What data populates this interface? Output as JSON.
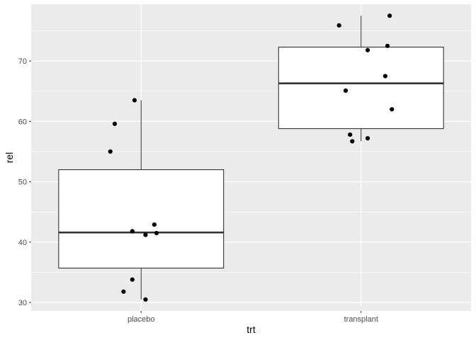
{
  "chart_data": {
    "type": "box",
    "xlabel": "trt",
    "ylabel": "rel",
    "categories": [
      "placebo",
      "transplant"
    ],
    "ylim": [
      28.6,
      79.4
    ],
    "yticks": [
      30,
      40,
      50,
      60,
      70
    ],
    "grid": true,
    "boxes": [
      {
        "category": "placebo",
        "whisker_low": 30.5,
        "q1": 35.7,
        "median": 41.6,
        "q3": 52.0,
        "whisker_high": 63.5
      },
      {
        "category": "transplant",
        "whisker_low": 56.7,
        "q1": 58.8,
        "median": 66.3,
        "q3": 72.3,
        "whisker_high": 77.5
      }
    ],
    "points": [
      {
        "category": "placebo",
        "jitter": -0.14,
        "y": 55.0
      },
      {
        "category": "placebo",
        "jitter": -0.12,
        "y": 59.6
      },
      {
        "category": "placebo",
        "jitter": -0.03,
        "y": 63.5
      },
      {
        "category": "placebo",
        "jitter": -0.04,
        "y": 41.8
      },
      {
        "category": "placebo",
        "jitter": 0.02,
        "y": 41.2
      },
      {
        "category": "placebo",
        "jitter": 0.06,
        "y": 42.9
      },
      {
        "category": "placebo",
        "jitter": 0.07,
        "y": 41.5
      },
      {
        "category": "placebo",
        "jitter": -0.04,
        "y": 33.8
      },
      {
        "category": "placebo",
        "jitter": -0.08,
        "y": 31.8
      },
      {
        "category": "placebo",
        "jitter": 0.02,
        "y": 30.5
      },
      {
        "category": "transplant",
        "jitter": -0.1,
        "y": 75.9
      },
      {
        "category": "transplant",
        "jitter": 0.03,
        "y": 71.8
      },
      {
        "category": "transplant",
        "jitter": 0.13,
        "y": 77.5
      },
      {
        "category": "transplant",
        "jitter": 0.12,
        "y": 72.5
      },
      {
        "category": "transplant",
        "jitter": 0.11,
        "y": 67.5
      },
      {
        "category": "transplant",
        "jitter": -0.07,
        "y": 65.1
      },
      {
        "category": "transplant",
        "jitter": 0.14,
        "y": 62.0
      },
      {
        "category": "transplant",
        "jitter": -0.05,
        "y": 57.8
      },
      {
        "category": "transplant",
        "jitter": -0.04,
        "y": 56.7
      },
      {
        "category": "transplant",
        "jitter": 0.03,
        "y": 57.2
      }
    ],
    "colors": {
      "panel": "#ebebeb",
      "grid_major": "#ffffff",
      "box_fill": "#ffffff",
      "box_stroke": "#333333",
      "point": "#000000",
      "tick_text": "#4d4d4d"
    }
  }
}
